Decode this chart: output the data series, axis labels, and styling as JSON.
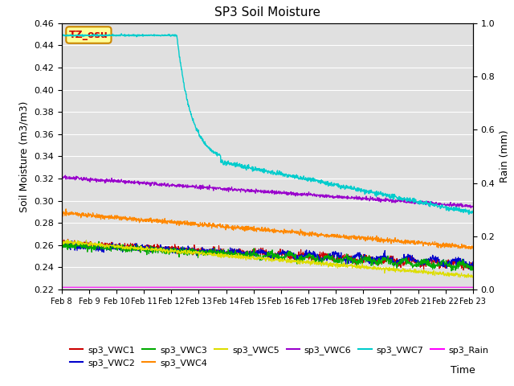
{
  "title": "SP3 Soil Moisture",
  "ylabel_left": "Soil Moisture (m3/m3)",
  "ylabel_right": "Rain (mm)",
  "xlabel": "Time",
  "ylim_left": [
    0.22,
    0.46
  ],
  "ylim_right": [
    0.0,
    1.0
  ],
  "x_tick_labels": [
    "Feb 8",
    "Feb 9",
    "Feb 10",
    "Feb 11",
    "Feb 12",
    "Feb 13",
    "Feb 14",
    "Feb 15",
    "Feb 16",
    "Feb 17",
    "Feb 18",
    "Feb 19",
    "Feb 20",
    "Feb 21",
    "Feb 22",
    "Feb 23"
  ],
  "bg_color": "#e0e0e0",
  "annotation_text": "TZ_osu",
  "annotation_bg": "#ffff99",
  "annotation_border": "#cc8800",
  "annotation_text_color": "#cc0000",
  "series_colors": {
    "sp3_VWC1": "#cc0000",
    "sp3_VWC2": "#0000cc",
    "sp3_VWC3": "#00aa00",
    "sp3_VWC4": "#ff8800",
    "sp3_VWC5": "#dddd00",
    "sp3_VWC6": "#9900cc",
    "sp3_VWC7": "#00cccc",
    "sp3_Rain": "#ff00ff"
  },
  "legend_order": [
    "sp3_VWC1",
    "sp3_VWC2",
    "sp3_VWC3",
    "sp3_VWC4",
    "sp3_VWC5",
    "sp3_VWC6",
    "sp3_VWC7",
    "sp3_Rain"
  ]
}
